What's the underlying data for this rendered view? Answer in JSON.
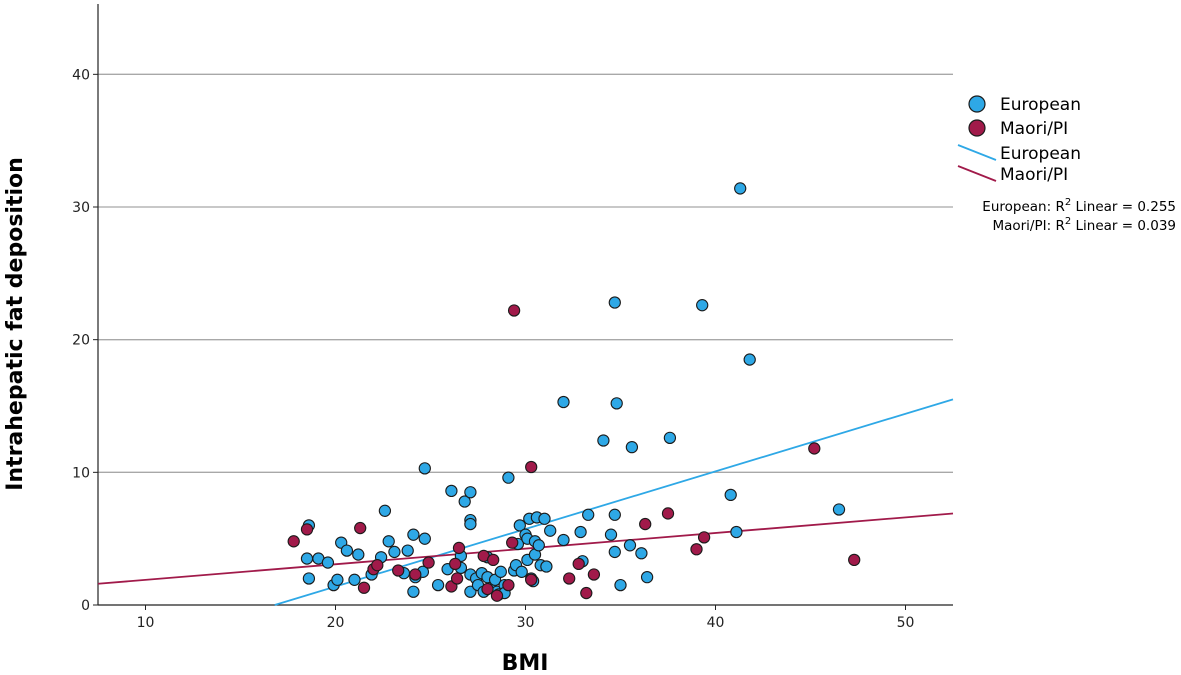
{
  "chart_data": {
    "type": "scatter",
    "xlabel": "BMI",
    "ylabel": "Intrahepatic fat deposition",
    "xlim": [
      7.5,
      52.5
    ],
    "ylim": [
      0,
      45
    ],
    "xticks": [
      10,
      20,
      30,
      40,
      50
    ],
    "yticks": [
      0,
      10,
      20,
      30,
      40
    ],
    "grid": "horizontal",
    "legend_placement": "right",
    "series": [
      {
        "name": "European",
        "color": "#2ea8e6",
        "points": [
          [
            18.6,
            6.0
          ],
          [
            18.5,
            3.5
          ],
          [
            18.6,
            2.0
          ],
          [
            19.1,
            3.5
          ],
          [
            19.6,
            3.2
          ],
          [
            19.9,
            1.5
          ],
          [
            20.1,
            1.9
          ],
          [
            20.3,
            4.7
          ],
          [
            20.6,
            4.1
          ],
          [
            21.0,
            1.9
          ],
          [
            21.2,
            3.8
          ],
          [
            21.9,
            2.3
          ],
          [
            22.4,
            3.6
          ],
          [
            22.6,
            7.1
          ],
          [
            22.8,
            4.8
          ],
          [
            23.1,
            4.0
          ],
          [
            23.6,
            2.4
          ],
          [
            23.8,
            4.1
          ],
          [
            24.1,
            1.0
          ],
          [
            24.1,
            5.3
          ],
          [
            24.2,
            2.1
          ],
          [
            24.6,
            2.5
          ],
          [
            24.7,
            5.0
          ],
          [
            24.7,
            10.3
          ],
          [
            25.4,
            1.5
          ],
          [
            25.9,
            2.7
          ],
          [
            26.1,
            8.6
          ],
          [
            26.6,
            3.7
          ],
          [
            26.6,
            2.8
          ],
          [
            26.8,
            7.8
          ],
          [
            27.1,
            8.5
          ],
          [
            27.1,
            6.4
          ],
          [
            27.1,
            6.1
          ],
          [
            27.1,
            2.3
          ],
          [
            27.1,
            1.0
          ],
          [
            27.4,
            2.0
          ],
          [
            27.5,
            1.5
          ],
          [
            27.7,
            2.4
          ],
          [
            27.8,
            1.0
          ],
          [
            28.0,
            3.6
          ],
          [
            28.0,
            2.1
          ],
          [
            28.2,
            1.3
          ],
          [
            28.4,
            1.9
          ],
          [
            28.5,
            1.0
          ],
          [
            28.6,
            0.8
          ],
          [
            28.7,
            2.5
          ],
          [
            28.9,
            1.5
          ],
          [
            28.9,
            0.9
          ],
          [
            29.1,
            9.6
          ],
          [
            29.4,
            2.6
          ],
          [
            29.5,
            3.0
          ],
          [
            29.6,
            4.6
          ],
          [
            29.7,
            6.0
          ],
          [
            29.8,
            2.5
          ],
          [
            30.0,
            5.3
          ],
          [
            30.1,
            5.0
          ],
          [
            30.1,
            3.4
          ],
          [
            30.2,
            6.5
          ],
          [
            30.3,
            2.0
          ],
          [
            30.4,
            1.8
          ],
          [
            30.5,
            4.8
          ],
          [
            30.5,
            3.8
          ],
          [
            30.6,
            6.6
          ],
          [
            30.7,
            4.5
          ],
          [
            30.8,
            3.0
          ],
          [
            31.0,
            6.5
          ],
          [
            31.1,
            2.9
          ],
          [
            31.3,
            5.6
          ],
          [
            32.0,
            15.3
          ],
          [
            32.0,
            4.9
          ],
          [
            32.9,
            5.5
          ],
          [
            33.0,
            3.3
          ],
          [
            33.3,
            6.8
          ],
          [
            34.1,
            12.4
          ],
          [
            34.5,
            5.3
          ],
          [
            34.7,
            22.8
          ],
          [
            34.7,
            6.8
          ],
          [
            34.7,
            4.0
          ],
          [
            34.8,
            15.2
          ],
          [
            35.0,
            1.5
          ],
          [
            35.5,
            4.5
          ],
          [
            35.6,
            11.9
          ],
          [
            36.1,
            3.9
          ],
          [
            36.4,
            2.1
          ],
          [
            37.6,
            12.6
          ],
          [
            39.3,
            22.6
          ],
          [
            40.8,
            8.3
          ],
          [
            41.1,
            5.5
          ],
          [
            41.3,
            31.4
          ],
          [
            41.8,
            18.5
          ],
          [
            46.5,
            7.2
          ]
        ],
        "fit": {
          "label": "European: R² Linear = 0.255",
          "x": [
            16.8,
            52.5
          ],
          "y": [
            0.0,
            15.5
          ]
        }
      },
      {
        "name": "Maori/PI",
        "color": "#a11a4a",
        "points": [
          [
            17.8,
            4.8
          ],
          [
            18.5,
            5.7
          ],
          [
            21.3,
            5.8
          ],
          [
            21.5,
            1.3
          ],
          [
            22.0,
            2.7
          ],
          [
            22.2,
            3.0
          ],
          [
            23.3,
            2.6
          ],
          [
            24.2,
            2.3
          ],
          [
            24.9,
            3.2
          ],
          [
            26.1,
            1.4
          ],
          [
            26.3,
            3.1
          ],
          [
            26.4,
            2.0
          ],
          [
            26.5,
            4.3
          ],
          [
            27.8,
            3.7
          ],
          [
            28.0,
            1.2
          ],
          [
            28.3,
            3.4
          ],
          [
            28.5,
            0.7
          ],
          [
            29.1,
            1.5
          ],
          [
            29.3,
            4.7
          ],
          [
            29.4,
            22.2
          ],
          [
            30.3,
            1.9
          ],
          [
            30.3,
            10.4
          ],
          [
            32.3,
            2.0
          ],
          [
            32.8,
            3.1
          ],
          [
            33.2,
            0.9
          ],
          [
            33.6,
            2.3
          ],
          [
            36.3,
            6.1
          ],
          [
            37.5,
            6.9
          ],
          [
            39.0,
            4.2
          ],
          [
            39.4,
            5.1
          ],
          [
            45.2,
            11.8
          ],
          [
            47.3,
            3.4
          ]
        ],
        "fit": {
          "label": "Maori/PI: R² Linear = 0.039",
          "x": [
            7.5,
            52.5
          ],
          "y": [
            1.6,
            6.9
          ]
        }
      }
    ],
    "legend": {
      "marker_entries": [
        "European",
        "Maori/PI"
      ],
      "line_entries": [
        "European",
        "Maori/PI"
      ]
    },
    "annotations": {
      "european_r2": {
        "prefix": "European: R",
        "sup": "2",
        "suffix": " Linear = 0.255"
      },
      "maori_r2": {
        "prefix": "Maori/PI: R",
        "sup": "2",
        "suffix": " Linear = 0.039"
      }
    }
  }
}
